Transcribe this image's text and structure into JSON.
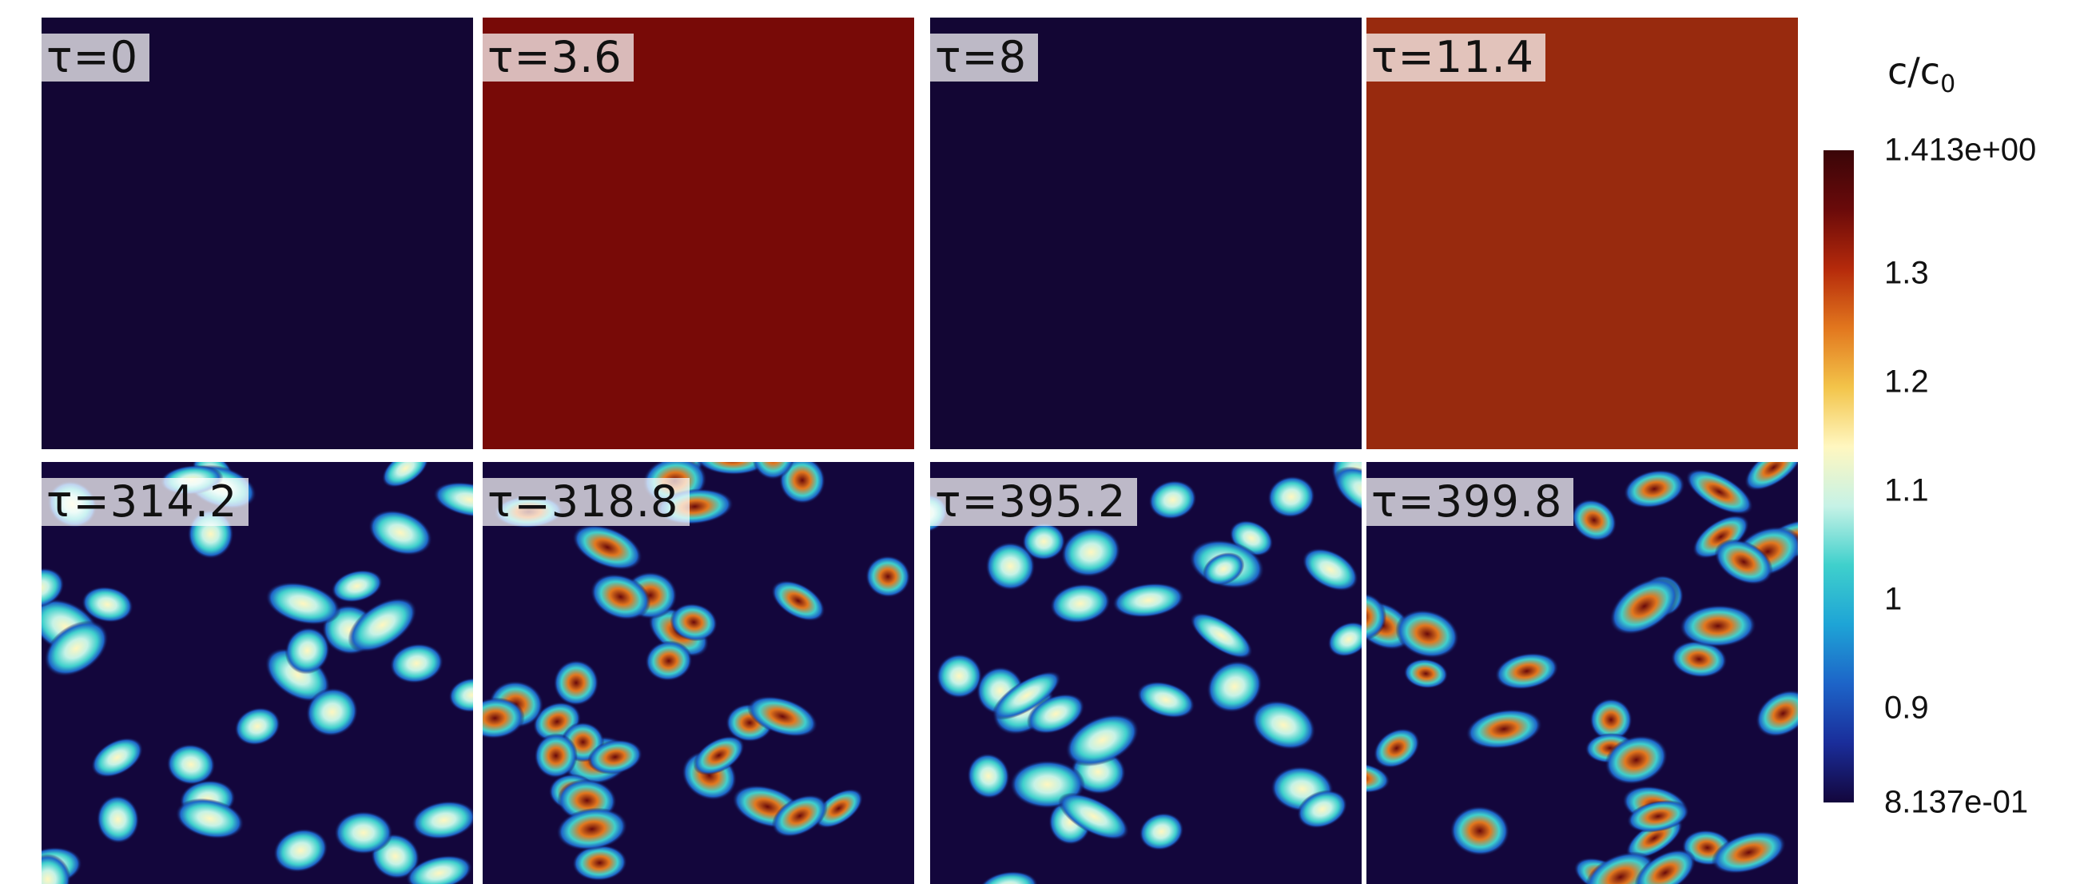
{
  "panels_top": [
    {
      "label": "τ=0",
      "color": "#130634"
    },
    {
      "label": "τ=3.6",
      "color": "#780a07"
    },
    {
      "label": "τ=8",
      "color": "#130634"
    },
    {
      "label": "τ=11.4",
      "color": "#982a0e"
    }
  ],
  "panels_bottom": [
    {
      "label": "τ=314.2",
      "intensity": 0.62
    },
    {
      "label": "τ=318.8",
      "intensity": 1.0
    },
    {
      "label": "τ=395.2",
      "intensity": 0.75
    },
    {
      "label": "τ=399.8",
      "intensity": 0.95
    }
  ],
  "colorbar": {
    "title": "c/c",
    "title_sub": "0",
    "min": 0.8137,
    "max": 1.413,
    "ticks": [
      {
        "label": "1.413e+00",
        "value": 1.413
      },
      {
        "label": "1.3",
        "value": 1.3
      },
      {
        "label": "1.2",
        "value": 1.2
      },
      {
        "label": "1.1",
        "value": 1.1
      },
      {
        "label": "1",
        "value": 1.0
      },
      {
        "label": "0.9",
        "value": 0.9
      },
      {
        "label": "8.137e-01",
        "value": 0.8137
      }
    ],
    "stops": [
      "#13063c",
      "#1a2d9a",
      "#1d64c8",
      "#1ea4d6",
      "#3fd0cc",
      "#c6f2e6",
      "#fff7c0",
      "#f3c44a",
      "#e2771e",
      "#b52a0b",
      "#6a0a0a",
      "#3a0508"
    ]
  }
}
